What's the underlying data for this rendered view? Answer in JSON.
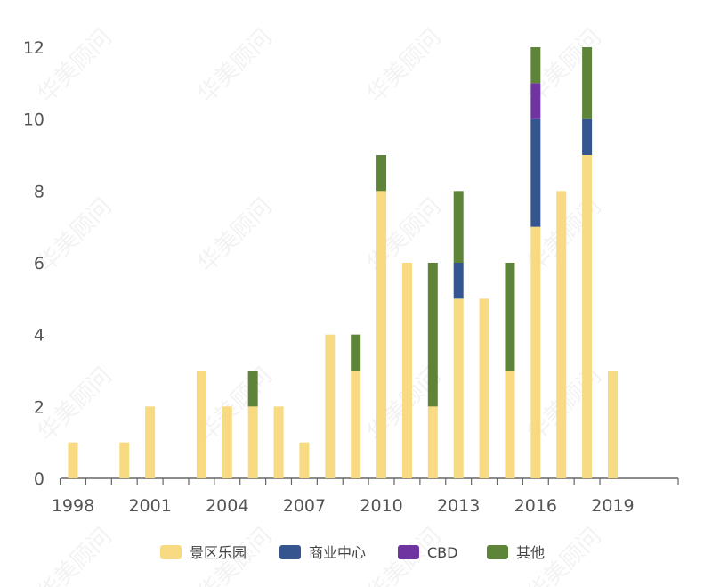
{
  "watermark": "华美顾问",
  "chart_data": {
    "type": "bar",
    "stacked": true,
    "categories": [
      "1998",
      "1999",
      "2000",
      "2001",
      "2002",
      "2003",
      "2004",
      "2005",
      "2006",
      "2007",
      "2008",
      "2009",
      "2010",
      "2011",
      "2012",
      "2013",
      "2014",
      "2015",
      "2016",
      "2017",
      "2018",
      "2019"
    ],
    "x_tick_labels": [
      "1998",
      "2001",
      "2004",
      "2007",
      "2010",
      "2013",
      "2016",
      "2019"
    ],
    "ylim": [
      0,
      12
    ],
    "y_ticks": [
      0,
      2,
      4,
      6,
      8,
      10,
      12
    ],
    "grid": false,
    "legend_position": "bottom",
    "series": [
      {
        "name": "景区乐园",
        "color": "#F7DA82",
        "values": [
          1,
          0,
          1,
          2,
          0,
          3,
          2,
          2,
          2,
          1,
          4,
          3,
          8,
          6,
          2,
          5,
          5,
          3,
          7,
          8,
          9,
          3
        ]
      },
      {
        "name": "商业中心",
        "color": "#34558E",
        "values": [
          0,
          0,
          0,
          0,
          0,
          0,
          0,
          0,
          0,
          0,
          0,
          0,
          0,
          0,
          0,
          1,
          0,
          0,
          3,
          0,
          1,
          0
        ]
      },
      {
        "name": "CBD",
        "color": "#6F34A0",
        "values": [
          0,
          0,
          0,
          0,
          0,
          0,
          0,
          0,
          0,
          0,
          0,
          0,
          0,
          0,
          0,
          0,
          0,
          0,
          1,
          0,
          0,
          0
        ]
      },
      {
        "name": "其他",
        "color": "#5E843A",
        "values": [
          0,
          0,
          0,
          0,
          0,
          0,
          0,
          1,
          0,
          0,
          0,
          1,
          1,
          0,
          4,
          2,
          0,
          3,
          1,
          0,
          2,
          0
        ]
      }
    ]
  }
}
